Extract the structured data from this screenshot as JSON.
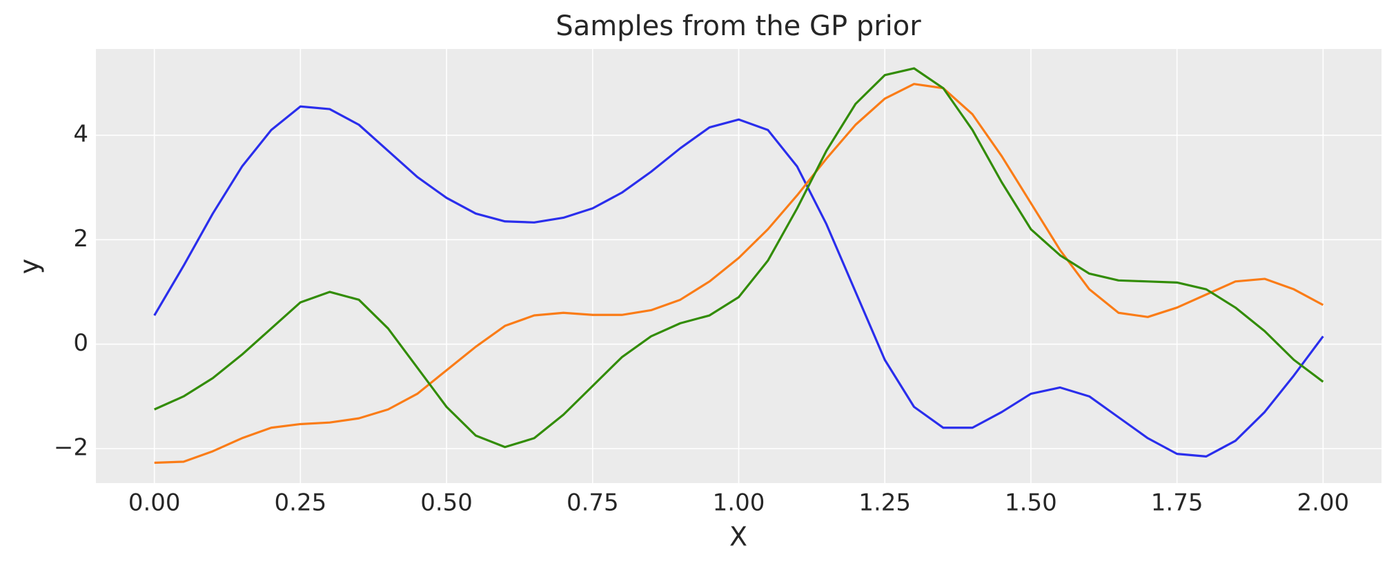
{
  "chart_data": {
    "type": "line",
    "title": "Samples from the GP prior",
    "x_label": "X",
    "y_label": "y",
    "x": [
      0,
      0.05,
      0.1,
      0.15,
      0.2,
      0.25,
      0.3,
      0.35,
      0.4,
      0.45,
      0.5,
      0.55,
      0.6,
      0.65,
      0.7,
      0.75,
      0.8,
      0.85,
      0.9,
      0.95,
      1.0,
      1.05,
      1.1,
      1.15,
      1.2,
      1.25,
      1.3,
      1.35,
      1.4,
      1.45,
      1.5,
      1.55,
      1.6,
      1.65,
      1.7,
      1.75,
      1.8,
      1.85,
      1.9,
      1.95,
      2.0
    ],
    "series": [
      {
        "color": "#2a2eec",
        "values": [
          0.55,
          1.5,
          2.5,
          3.4,
          4.1,
          4.55,
          4.5,
          4.2,
          3.7,
          3.2,
          2.8,
          2.5,
          2.35,
          2.33,
          2.42,
          2.6,
          2.9,
          3.3,
          3.75,
          4.15,
          4.3,
          4.1,
          3.4,
          2.3,
          1.0,
          -0.3,
          -1.2,
          -1.6,
          -1.6,
          -1.3,
          -0.95,
          -0.83,
          -1.0,
          -1.4,
          -1.8,
          -2.1,
          -2.15,
          -1.85,
          -1.3,
          -0.6,
          0.15
        ]
      },
      {
        "color": "#fa7c17",
        "values": [
          -2.27,
          -2.25,
          -2.05,
          -1.8,
          -1.6,
          -1.53,
          -1.5,
          -1.42,
          -1.25,
          -0.95,
          -0.5,
          -0.05,
          0.35,
          0.55,
          0.6,
          0.56,
          0.56,
          0.65,
          0.85,
          1.2,
          1.65,
          2.2,
          2.85,
          3.55,
          4.2,
          4.7,
          4.98,
          4.9,
          4.4,
          3.6,
          2.7,
          1.8,
          1.05,
          0.6,
          0.52,
          0.7,
          0.95,
          1.2,
          1.25,
          1.05,
          0.75
        ]
      },
      {
        "color": "#328c06",
        "values": [
          -1.25,
          -1.0,
          -0.65,
          -0.2,
          0.3,
          0.8,
          1.0,
          0.85,
          0.3,
          -0.45,
          -1.2,
          -1.75,
          -1.97,
          -1.8,
          -1.35,
          -0.8,
          -0.25,
          0.15,
          0.4,
          0.55,
          0.9,
          1.6,
          2.6,
          3.7,
          4.6,
          5.15,
          5.28,
          4.9,
          4.1,
          3.1,
          2.2,
          1.7,
          1.35,
          1.22,
          1.2,
          1.18,
          1.05,
          0.7,
          0.25,
          -0.3,
          -0.72
        ]
      }
    ],
    "xlim": [
      -0.1,
      2.1
    ],
    "ylim": [
      -2.66,
      5.65
    ],
    "xticks": [
      {
        "value": 0,
        "label": "0.00"
      },
      {
        "value": 0.25,
        "label": "0.25"
      },
      {
        "value": 0.5,
        "label": "0.50"
      },
      {
        "value": 0.75,
        "label": "0.75"
      },
      {
        "value": 1,
        "label": "1.00"
      },
      {
        "value": 1.25,
        "label": "1.25"
      },
      {
        "value": 1.5,
        "label": "1.50"
      },
      {
        "value": 1.75,
        "label": "1.75"
      },
      {
        "value": 2,
        "label": "2.00"
      }
    ],
    "yticks": [
      {
        "value": -2,
        "label": "−2"
      },
      0,
      2,
      4
    ],
    "grid": true
  }
}
